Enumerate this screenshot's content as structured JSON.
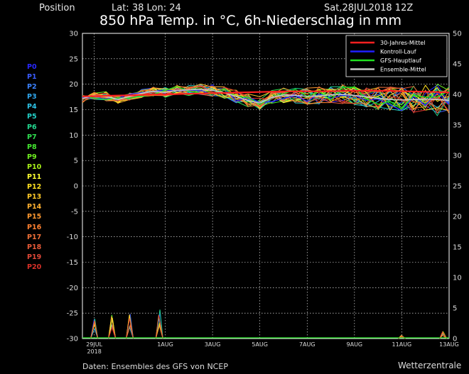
{
  "header": {
    "position_label": "Position",
    "latlon": "Lat: 38 Lon: 24",
    "date": "Sat,28JUL2018 12Z",
    "title": "850 hPa Temp. in °C, 6h-Niederschlag in mm"
  },
  "footer": {
    "source": "Daten: Ensembles des GFS von NCEP",
    "brand": "Wetterzentrale"
  },
  "members": [
    {
      "label": "P0",
      "color": "#2828ff"
    },
    {
      "label": "P1",
      "color": "#3a5cff"
    },
    {
      "label": "P2",
      "color": "#3c82ff"
    },
    {
      "label": "P3",
      "color": "#30a8f0"
    },
    {
      "label": "P4",
      "color": "#2ec4e8"
    },
    {
      "label": "P5",
      "color": "#22d0c8"
    },
    {
      "label": "P6",
      "color": "#22d890"
    },
    {
      "label": "P7",
      "color": "#30e050"
    },
    {
      "label": "P8",
      "color": "#44e830"
    },
    {
      "label": "P9",
      "color": "#70f020"
    },
    {
      "label": "P10",
      "color": "#a8f018"
    },
    {
      "label": "P11",
      "color": "#ffff30"
    },
    {
      "label": "P12",
      "color": "#ffe020"
    },
    {
      "label": "P13",
      "color": "#ffc828"
    },
    {
      "label": "P14",
      "color": "#ffb030"
    },
    {
      "label": "P15",
      "color": "#ff9830"
    },
    {
      "label": "P16",
      "color": "#ff8030"
    },
    {
      "label": "P17",
      "color": "#f07038"
    },
    {
      "label": "P18",
      "color": "#e85a38"
    },
    {
      "label": "P19",
      "color": "#e04838"
    },
    {
      "label": "P20",
      "color": "#d83028"
    }
  ],
  "chart_data": {
    "type": "line",
    "title": "850 hPa Temp. in °C, 6h-Niederschlag in mm",
    "ylim": [
      -30,
      30
    ],
    "yticks": [
      30,
      25,
      20,
      15,
      10,
      5,
      0,
      -5,
      -10,
      -15,
      -20,
      -25,
      -30
    ],
    "y2lim": [
      0,
      50
    ],
    "y2ticks": [
      50,
      45,
      40,
      35,
      30,
      25,
      20,
      15,
      10,
      5,
      0
    ],
    "xlim": [
      0,
      62
    ],
    "xticks": [
      {
        "label": "29JUL",
        "sub": "2018",
        "x": 2
      },
      {
        "label": "1AUG",
        "x": 14
      },
      {
        "label": "3AUG",
        "x": 22
      },
      {
        "label": "5AUG",
        "x": 30
      },
      {
        "label": "7AUG",
        "x": 38
      },
      {
        "label": "9AUG",
        "x": 46
      },
      {
        "label": "11AUG",
        "x": 54
      },
      {
        "label": "13AUG",
        "x": 62
      }
    ],
    "grid": true,
    "legend_position": "top-right",
    "legend": [
      {
        "name": "30-Jahres-Mittel",
        "color": "#ff2020"
      },
      {
        "name": "Kontroll-Lauf",
        "color": "#2020ff"
      },
      {
        "name": "GFS-Hauptlauf",
        "color": "#20e020"
      },
      {
        "name": "Ensemble-Mittel",
        "color": "#c8c8c8"
      }
    ],
    "climatology": [
      17.6,
      17.7,
      17.8,
      17.9,
      18.0,
      18.1,
      18.2,
      18.3,
      18.4,
      18.5,
      18.6,
      18.6,
      18.6,
      18.7,
      18.7,
      18.7,
      18.6,
      18.5,
      18.4
    ],
    "temperature": {
      "x": [
        0,
        2,
        4,
        6,
        8,
        10,
        12,
        14,
        16,
        18,
        20,
        22,
        24,
        26,
        28,
        30,
        32,
        34,
        36,
        38,
        40,
        42,
        44,
        46,
        48,
        50,
        52,
        54,
        56,
        58,
        60,
        62
      ],
      "ensemble_mean": [
        17.2,
        17.8,
        17.6,
        17.0,
        17.6,
        18.2,
        18.6,
        18.4,
        18.8,
        18.9,
        19.0,
        18.8,
        18.3,
        17.6,
        16.8,
        16.3,
        17.4,
        17.9,
        17.8,
        17.6,
        17.7,
        17.9,
        18.0,
        17.8,
        17.5,
        17.2,
        17.0,
        16.9,
        17.0,
        17.1,
        17.0,
        16.8
      ],
      "spread_early": 0.8,
      "spread_late": 3.2
    },
    "precipitation": {
      "peaks": [
        {
          "x": 2,
          "mm": 3.4
        },
        {
          "x": 5,
          "mm": 4.2
        },
        {
          "x": 8,
          "mm": 4.5
        },
        {
          "x": 13,
          "mm": 5.0
        },
        {
          "x": 54,
          "mm": 0.5
        },
        {
          "x": 61,
          "mm": 1.2
        }
      ]
    }
  }
}
